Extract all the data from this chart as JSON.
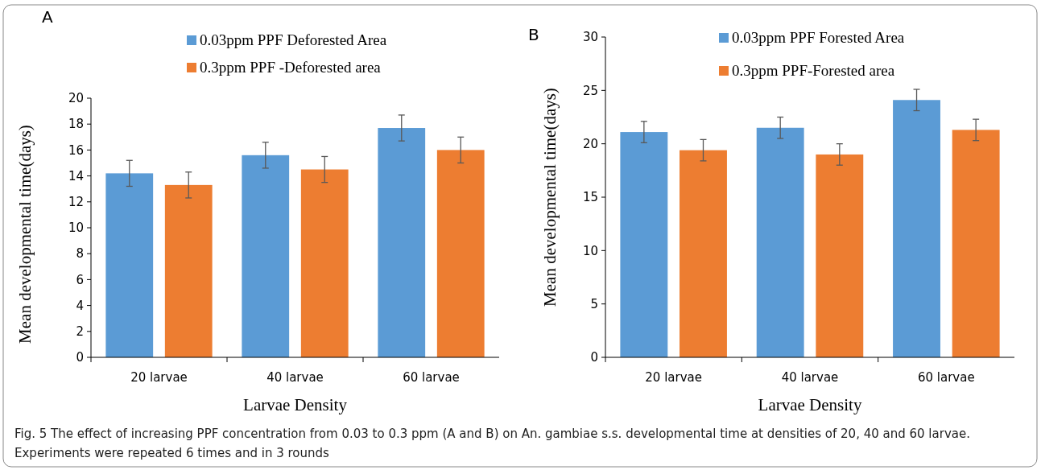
{
  "chart_data": [
    {
      "type": "bar",
      "title": "A",
      "xlabel": "Larvae Density",
      "ylabel": "Mean developmental time(days)",
      "categories": [
        "20 larvae",
        "40 larvae",
        "60 larvae"
      ],
      "series": [
        {
          "name": "0.03ppm PPF Deforested Area",
          "color": "#5b9bd5",
          "values": [
            14.2,
            15.6,
            17.7
          ],
          "errors": [
            1,
            1,
            1
          ]
        },
        {
          "name": "0.3ppm PPF -Deforested area",
          "color": "#ed7d31",
          "values": [
            13.3,
            14.5,
            16.0
          ],
          "errors": [
            1,
            1,
            1
          ]
        }
      ],
      "ylim": [
        0,
        20
      ],
      "yticks": [
        0,
        2,
        4,
        6,
        8,
        10,
        12,
        14,
        16,
        18,
        20
      ],
      "legend": "top",
      "annotations": [
        "Fig. 5  The effect of increasing PPF concentration from 0.03 to 0.3 ppm (A and B) on An. gambiae s.s. developmental time at densities of 20, 40 and 60 larvae. Experiments were repeated 6 times and in 3 rounds"
      ]
    },
    {
      "type": "bar",
      "title": "B",
      "xlabel": "Larvae Density",
      "ylabel": "Mean developmental time(days)",
      "categories": [
        "20 larvae",
        "40 larvae",
        "60 larvae"
      ],
      "series": [
        {
          "name": "0.03ppm PPF Forested Area",
          "color": "#5b9bd5",
          "values": [
            21.1,
            21.5,
            24.1
          ],
          "errors": [
            1,
            1,
            1
          ]
        },
        {
          "name": "0.3ppm PPF-Forested area",
          "color": "#ed7d31",
          "values": [
            19.4,
            19.0,
            21.3
          ],
          "errors": [
            1,
            1,
            1
          ]
        }
      ],
      "ylim": [
        0,
        30
      ],
      "yticks": [
        0,
        5,
        10,
        15,
        20,
        25,
        30
      ],
      "legend": "top"
    }
  ]
}
